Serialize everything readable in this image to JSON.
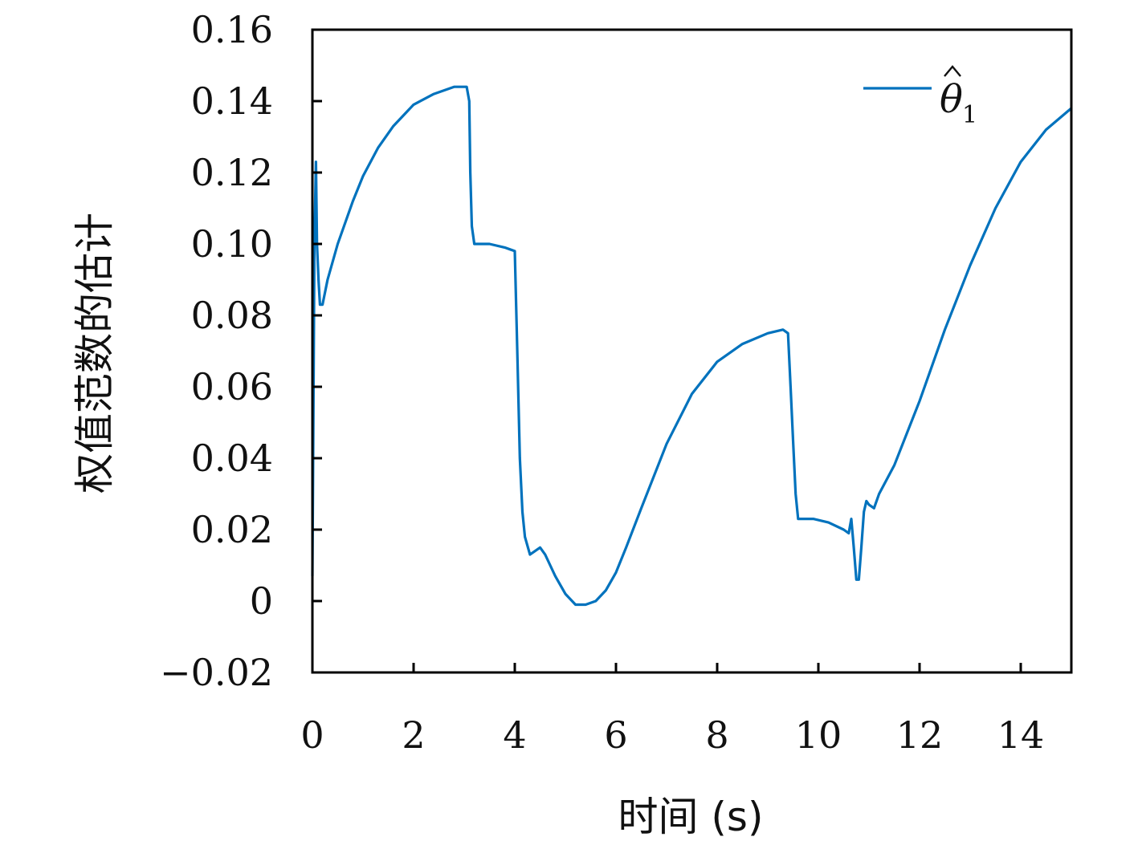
{
  "chart_data": {
    "type": "line",
    "title": "",
    "xlabel": "时间 (s)",
    "ylabel": "权值范数的估计",
    "xlim": [
      0,
      15
    ],
    "ylim": [
      -0.02,
      0.16
    ],
    "x_ticks": [
      0,
      2,
      4,
      6,
      8,
      10,
      12,
      14
    ],
    "x_tick_labels": [
      "0",
      "2",
      "4",
      "6",
      "8",
      "10",
      "12",
      "14"
    ],
    "y_ticks": [
      -0.02,
      0,
      0.02,
      0.04,
      0.06,
      0.08,
      0.1,
      0.12,
      0.14,
      0.16
    ],
    "y_tick_labels": [
      "−0.02",
      "0",
      "0.02",
      "0.04",
      "0.06",
      "0.08",
      "0.10",
      "0.12",
      "0.14",
      "0.16"
    ],
    "grid": false,
    "legend_position": "top-right",
    "color": "#0072BD",
    "series": [
      {
        "name": "θ̂1",
        "legend_symbol": "θ",
        "legend_subscript": "1",
        "x": [
          0.0,
          0.04,
          0.07,
          0.09,
          0.12,
          0.15,
          0.2,
          0.3,
          0.5,
          0.8,
          1.0,
          1.3,
          1.6,
          2.0,
          2.4,
          2.8,
          3.05,
          3.1,
          3.12,
          3.15,
          3.2,
          3.3,
          3.5,
          3.8,
          4.0,
          4.05,
          4.1,
          4.15,
          4.2,
          4.3,
          4.4,
          4.5,
          4.6,
          4.7,
          4.8,
          5.0,
          5.2,
          5.4,
          5.6,
          5.8,
          6.0,
          6.2,
          6.5,
          7.0,
          7.5,
          8.0,
          8.5,
          9.0,
          9.3,
          9.4,
          9.45,
          9.5,
          9.55,
          9.6,
          9.7,
          9.9,
          10.2,
          10.5,
          10.6,
          10.65,
          10.7,
          10.75,
          10.8,
          10.85,
          10.9,
          10.95,
          11.0,
          11.1,
          11.2,
          11.5,
          12.0,
          12.5,
          13.0,
          13.5,
          14.0,
          14.5,
          15.0
        ],
        "y": [
          0.007,
          0.1,
          0.123,
          0.1,
          0.09,
          0.083,
          0.083,
          0.09,
          0.1,
          0.112,
          0.119,
          0.127,
          0.133,
          0.139,
          0.142,
          0.144,
          0.144,
          0.14,
          0.12,
          0.105,
          0.1,
          0.1,
          0.1,
          0.099,
          0.098,
          0.07,
          0.04,
          0.025,
          0.018,
          0.013,
          0.014,
          0.015,
          0.013,
          0.01,
          0.007,
          0.002,
          -0.001,
          -0.001,
          0.0,
          0.003,
          0.008,
          0.015,
          0.026,
          0.044,
          0.058,
          0.067,
          0.072,
          0.075,
          0.076,
          0.075,
          0.06,
          0.045,
          0.03,
          0.023,
          0.023,
          0.023,
          0.022,
          0.02,
          0.019,
          0.023,
          0.015,
          0.006,
          0.006,
          0.015,
          0.025,
          0.028,
          0.027,
          0.026,
          0.03,
          0.038,
          0.056,
          0.076,
          0.094,
          0.11,
          0.123,
          0.132,
          0.138
        ]
      }
    ]
  }
}
